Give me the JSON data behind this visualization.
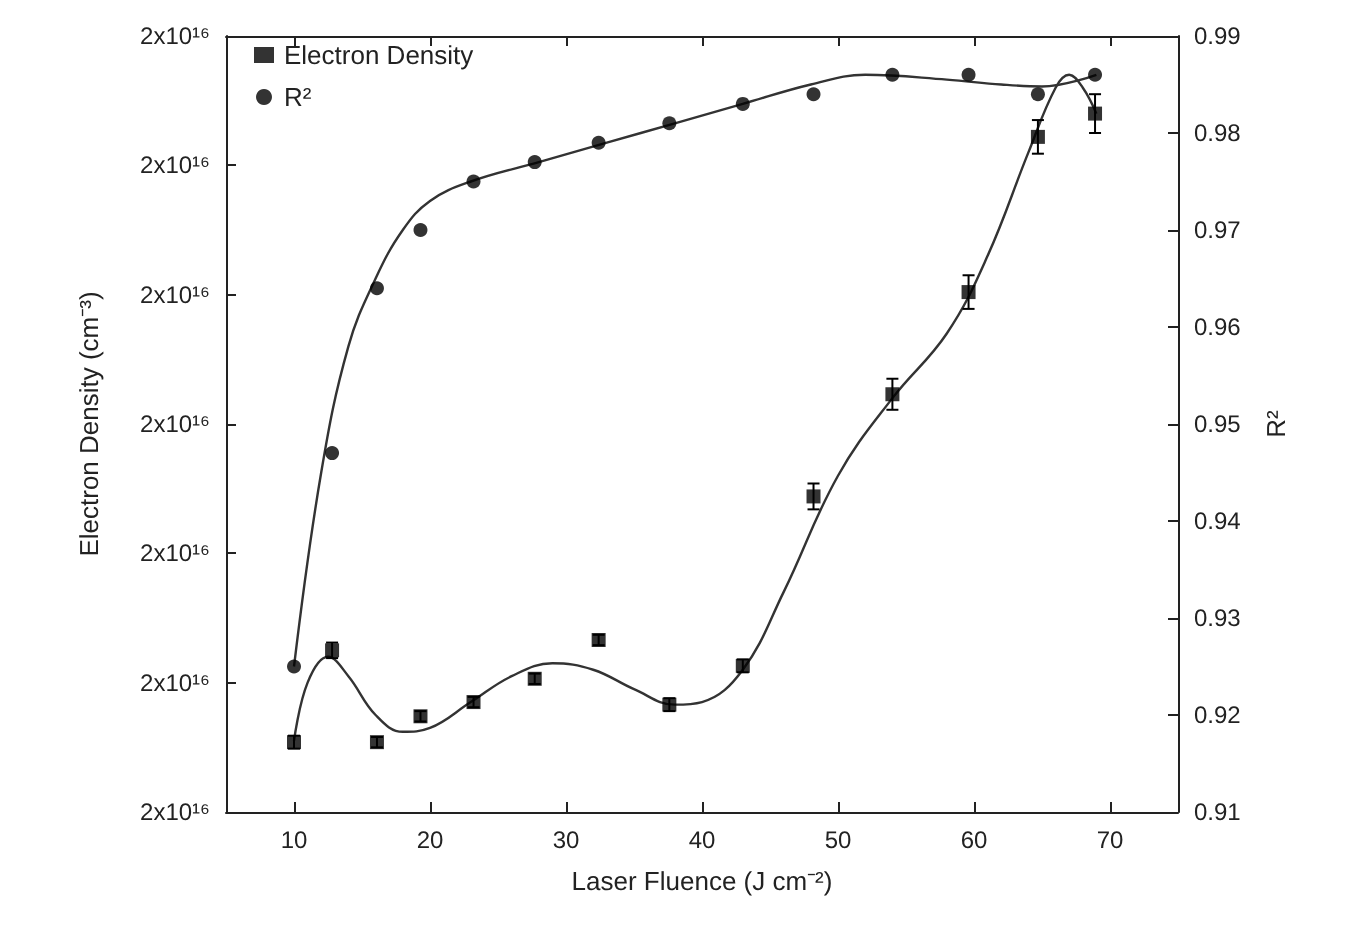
{
  "chart_data": {
    "type": "scatter",
    "xlabel": "Laser Fluence (J cm⁻²)",
    "ylabel": "Electron Density (cm⁻³)",
    "y2label": "R²",
    "xlim": [
      5,
      75
    ],
    "xticks": [
      10,
      20,
      30,
      40,
      50,
      60,
      70
    ],
    "ylim": [
      1.7e+16,
      2.3e+16
    ],
    "yticks": [
      {
        "value": 1.7e+16,
        "label": "2x10¹⁶"
      },
      {
        "value": 1.8e+16,
        "label": "2x10¹⁶"
      },
      {
        "value": 1.9e+16,
        "label": "2x10¹⁶"
      },
      {
        "value": 2e+16,
        "label": "2x10¹⁶"
      },
      {
        "value": 2.1e+16,
        "label": "2x10¹⁶"
      },
      {
        "value": 2.2e+16,
        "label": "2x10¹⁶"
      },
      {
        "value": 2.3e+16,
        "label": "2x10¹⁶"
      }
    ],
    "y2lim": [
      0.91,
      0.99
    ],
    "y2ticks": [
      0.91,
      0.92,
      0.93,
      0.94,
      0.95,
      0.96,
      0.97,
      0.98,
      0.99
    ],
    "grid": false,
    "legend": "top left",
    "series": [
      {
        "name": "Electron Density",
        "marker": "square",
        "color": "#000000",
        "x": [
          10,
          12.8,
          16.1,
          19.3,
          23.2,
          27.7,
          32.4,
          37.6,
          43,
          48.2,
          54,
          59.6,
          64.7,
          68.9
        ],
        "values": [
          1.754e+16,
          1.825e+16,
          1.754e+16,
          1.774e+16,
          1.785e+16,
          1.803e+16,
          1.833e+16,
          1.783e+16,
          1.813e+16,
          1.944e+16,
          2.023e+16,
          2.102e+16,
          2.222e+16,
          2.24e+16
        ],
        "errors": [
          50000000000000.0,
          60000000000000.0,
          40000000000000.0,
          40000000000000.0,
          40000000000000.0,
          40000000000000.0,
          40000000000000.0,
          50000000000000.0,
          50000000000000.0,
          100000000000000.0,
          120000000000000.0,
          130000000000000.0,
          130000000000000.0,
          150000000000000.0
        ]
      },
      {
        "name": "R²",
        "marker": "circle",
        "axis": "y2",
        "color": "#000000",
        "x": [
          10,
          12.8,
          16.1,
          19.3,
          23.2,
          27.7,
          32.4,
          37.6,
          43,
          48.2,
          54,
          59.6,
          64.7,
          68.9
        ],
        "values": [
          0.925,
          0.947,
          0.964,
          0.97,
          0.975,
          0.977,
          0.979,
          0.981,
          0.983,
          0.984,
          0.986,
          0.986,
          0.984,
          0.986
        ]
      },
      {
        "type": "line",
        "marker": "none",
        "color": "#333333",
        "x": [
          10,
          11,
          12.5,
          14,
          16,
          18,
          20,
          23,
          26,
          29,
          32,
          35,
          38,
          40,
          43,
          46,
          50,
          54,
          58,
          61,
          64,
          66,
          67,
          68,
          69
        ],
        "values": [
          1.755e+16,
          1.8e+16,
          1.82e+16,
          1.805e+16,
          1.775e+16,
          1.762e+16,
          1.765e+16,
          1.785e+16,
          1.805e+16,
          1.815e+16,
          1.81e+16,
          1.795e+16,
          1.783e+16,
          1.785e+16,
          1.81e+16,
          1.87e+16,
          1.96e+16,
          2.02e+16,
          2.07e+16,
          2.13e+16,
          2.21e+16,
          2.26e+16,
          2.27e+16,
          2.26e+16,
          2.24e+16
        ]
      },
      {
        "type": "line",
        "marker": "none",
        "axis": "y2",
        "color": "#333333",
        "x": [
          10,
          12,
          14,
          16,
          18,
          20,
          23,
          28,
          33,
          38,
          43,
          48,
          52,
          58,
          62,
          65,
          69
        ],
        "values": [
          0.925,
          0.945,
          0.958,
          0.965,
          0.97,
          0.973,
          0.975,
          0.977,
          0.979,
          0.981,
          0.983,
          0.985,
          0.986,
          0.9855,
          0.985,
          0.9848,
          0.986
        ]
      }
    ]
  }
}
